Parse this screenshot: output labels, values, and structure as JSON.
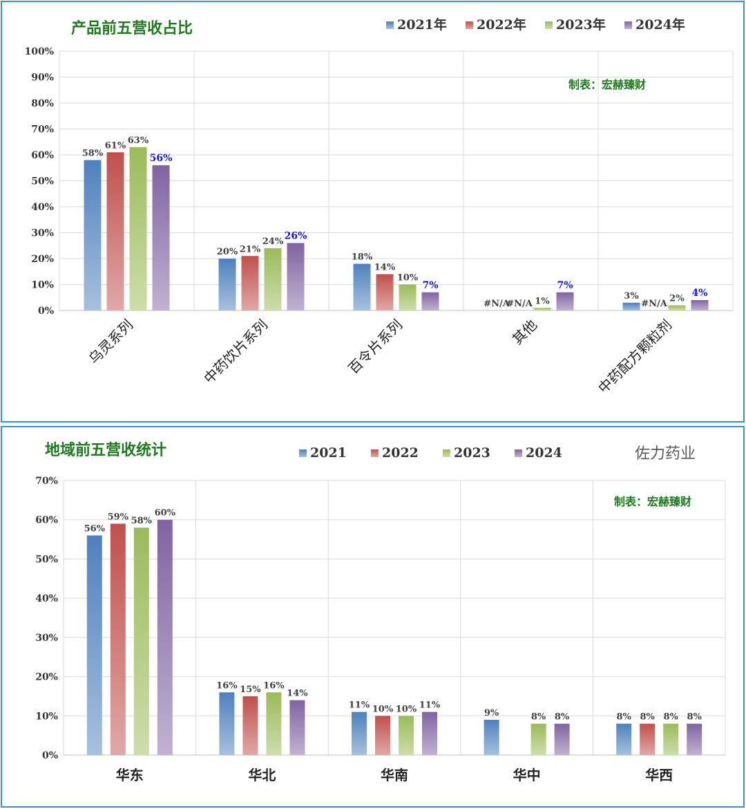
{
  "colors": {
    "frame": "#3a8fcf",
    "title": "#1f7a1f",
    "highlight": "#1414e6",
    "grid": "#d9d9d9"
  },
  "chart_data": [
    {
      "type": "bar",
      "title": "产品前五营收占比",
      "credit": "制表：宏赫臻财",
      "categories": [
        "乌灵系列",
        "中药饮片系列",
        "百令片系列",
        "其他",
        "中药配方颗粒剂"
      ],
      "series": [
        {
          "name": "2021年",
          "color": "#4f81bd",
          "values": [
            58,
            20,
            18,
            null,
            3
          ],
          "labels": [
            "58%",
            "20%",
            "18%",
            "#N/A",
            "3%"
          ]
        },
        {
          "name": "2022年",
          "color": "#c0504d",
          "values": [
            61,
            21,
            14,
            null,
            null
          ],
          "labels": [
            "61%",
            "21%",
            "14%",
            "#N/A",
            "#N/A"
          ]
        },
        {
          "name": "2023年",
          "color": "#9bbb59",
          "values": [
            63,
            24,
            10,
            1,
            2
          ],
          "labels": [
            "63%",
            "24%",
            "10%",
            "1%",
            "2%"
          ]
        },
        {
          "name": "2024年",
          "color": "#8064a2",
          "values": [
            56,
            26,
            7,
            7,
            4
          ],
          "labels": [
            "56%",
            "26%",
            "7%",
            "7%",
            "4%"
          ]
        }
      ],
      "ylim": [
        0,
        100
      ],
      "yticks": [
        "0%",
        "10%",
        "20%",
        "30%",
        "40%",
        "50%",
        "60%",
        "70%",
        "80%",
        "90%",
        "100%"
      ],
      "grid": true,
      "legend": "top-right"
    },
    {
      "type": "bar",
      "title": "地域前五营收统计",
      "company": "佐力药业",
      "credit": "制表：宏赫臻财",
      "categories": [
        "华东",
        "华北",
        "华南",
        "华中",
        "华西"
      ],
      "series": [
        {
          "name": "2021",
          "color": "#4f81bd",
          "values": [
            56,
            16,
            11,
            9,
            8
          ],
          "labels": [
            "56%",
            "16%",
            "11%",
            "9%",
            "8%"
          ]
        },
        {
          "name": "2022",
          "color": "#c0504d",
          "values": [
            59,
            15,
            10,
            null,
            8
          ],
          "labels": [
            "59%",
            "15%",
            "10%",
            "",
            "8%"
          ]
        },
        {
          "name": "2023",
          "color": "#9bbb59",
          "values": [
            58,
            16,
            10,
            8,
            8
          ],
          "labels": [
            "58%",
            "16%",
            "10%",
            "8%",
            "8%"
          ]
        },
        {
          "name": "2024",
          "color": "#8064a2",
          "values": [
            60,
            14,
            11,
            8,
            8
          ],
          "labels": [
            "60%",
            "14%",
            "11%",
            "8%",
            "8%"
          ]
        }
      ],
      "ylim": [
        0,
        70
      ],
      "yticks": [
        "0%",
        "10%",
        "20%",
        "30%",
        "40%",
        "50%",
        "60%",
        "70%"
      ],
      "grid": true,
      "legend": "top"
    }
  ]
}
